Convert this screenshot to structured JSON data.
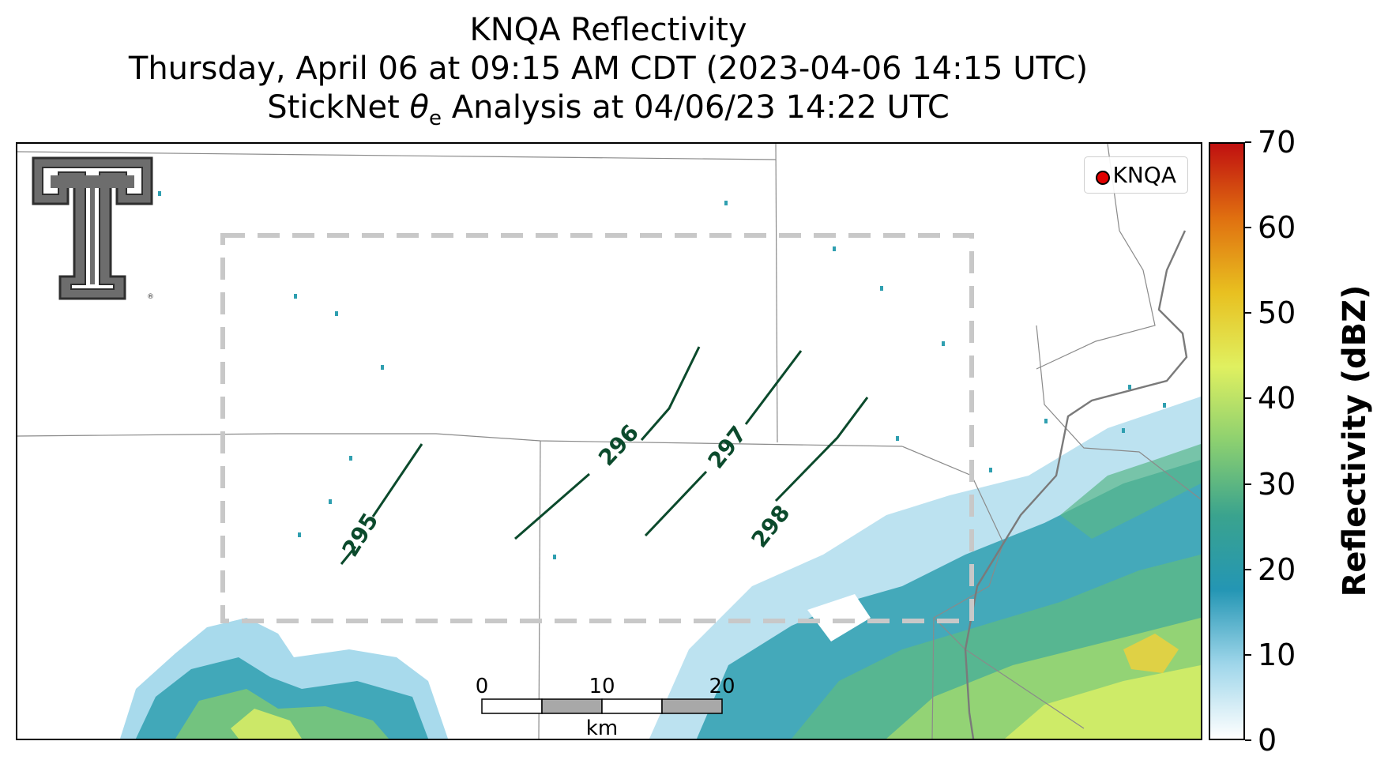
{
  "title": {
    "line1": "KNQA Reflectivity",
    "line2": "Thursday, April 06 at 09:15 AM CDT (2023-04-06 14:15 UTC)",
    "line3_prefix": "StickNet ",
    "line3_theta": "θ",
    "line3_sub": "e",
    "line3_suffix": " Analysis at 04/06/23 14:22 UTC"
  },
  "legend": {
    "label": "KNQA",
    "marker_color": "#e00000"
  },
  "contours": [
    {
      "label": "295",
      "value": 295
    },
    {
      "label": "296",
      "value": 296
    },
    {
      "label": "297",
      "value": 297
    },
    {
      "label": "298",
      "value": 298
    }
  ],
  "contour_color": "#0b4a2c",
  "scale_bar": {
    "ticks": [
      "0",
      "10",
      "20"
    ],
    "unit": "km"
  },
  "colorbar": {
    "label": "Reflectivity (dBZ)",
    "min": 0,
    "max": 70,
    "ticks": [
      "0",
      "10",
      "20",
      "30",
      "40",
      "50",
      "60",
      "70"
    ],
    "colors": [
      "#ffffff",
      "#9fd6ea",
      "#2496b4",
      "#3aa38e",
      "#8cd070",
      "#e0f060",
      "#e8c020",
      "#e07010",
      "#c01010"
    ]
  },
  "logo": {
    "name": "Texas Tech Double T",
    "mark": "®"
  }
}
